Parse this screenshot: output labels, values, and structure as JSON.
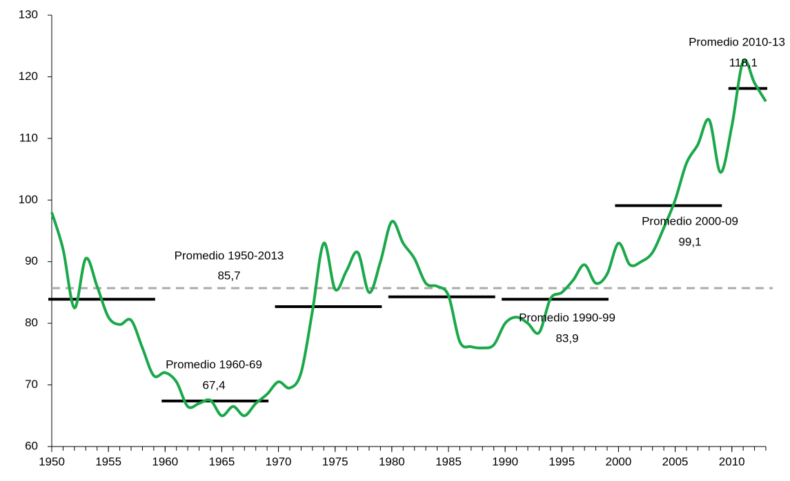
{
  "chart_data": {
    "type": "line",
    "x": [
      1950,
      1951,
      1952,
      1953,
      1954,
      1955,
      1956,
      1957,
      1958,
      1959,
      1960,
      1961,
      1962,
      1963,
      1964,
      1965,
      1966,
      1967,
      1968,
      1969,
      1970,
      1971,
      1972,
      1973,
      1974,
      1975,
      1976,
      1977,
      1978,
      1979,
      1980,
      1981,
      1982,
      1983,
      1984,
      1985,
      1986,
      1987,
      1988,
      1989,
      1990,
      1991,
      1992,
      1993,
      1994,
      1995,
      1996,
      1997,
      1998,
      1999,
      2000,
      2001,
      2002,
      2003,
      2004,
      2005,
      2006,
      2007,
      2008,
      2009,
      2010,
      2011,
      2012,
      2013
    ],
    "series": [
      {
        "color": "#1aa84a",
        "values": [
          98,
          92,
          82.5,
          90.5,
          86,
          81,
          79.8,
          80.5,
          76,
          71.5,
          72,
          70.5,
          66.5,
          67,
          67.5,
          65,
          66.5,
          65,
          67,
          68.5,
          70.5,
          69.5,
          72,
          82,
          93,
          85.5,
          88.5,
          91.5,
          85,
          90,
          96.5,
          93,
          90.5,
          86.5,
          86,
          84.5,
          77,
          76.2,
          76,
          76.5,
          80,
          81,
          80,
          78.5,
          84,
          85,
          87,
          89.5,
          86.5,
          88,
          93,
          89.5,
          90,
          91.5,
          95.5,
          100,
          106,
          109,
          113,
          104.5,
          112,
          122.5,
          119,
          116
        ]
      }
    ],
    "overall_average": {
      "label": "Promedio 1950-2013",
      "value": 85.7,
      "value_label": "85,7",
      "color": "#aaaaaa"
    },
    "averages": [
      {
        "start": 1950,
        "end": 1959,
        "value": 83.9
      },
      {
        "start": 1960,
        "end": 1969,
        "value": 67.4,
        "label": "Promedio 1960-69",
        "value_label": "67,4"
      },
      {
        "start": 1970,
        "end": 1979,
        "value": 82.7
      },
      {
        "start": 1980,
        "end": 1989,
        "value": 84.3
      },
      {
        "start": 1990,
        "end": 1999,
        "value": 83.9,
        "label": "Promedio 1990-99",
        "value_label": "83,9"
      },
      {
        "start": 2000,
        "end": 2009,
        "value": 99.1,
        "label": "Promedio 2000-09",
        "value_label": "99,1"
      },
      {
        "start": 2010,
        "end": 2013,
        "value": 118.1,
        "label": "Promedio 2010-13",
        "value_label": "118,1"
      }
    ],
    "average_color": "#000000",
    "xlim": [
      1950,
      2013
    ],
    "xticks": [
      1950,
      1955,
      1960,
      1965,
      1970,
      1975,
      1980,
      1985,
      1990,
      1995,
      2000,
      2005,
      2010
    ],
    "ylim": [
      60,
      130
    ],
    "yticks": [
      60,
      70,
      80,
      90,
      100,
      110,
      120,
      130
    ]
  }
}
